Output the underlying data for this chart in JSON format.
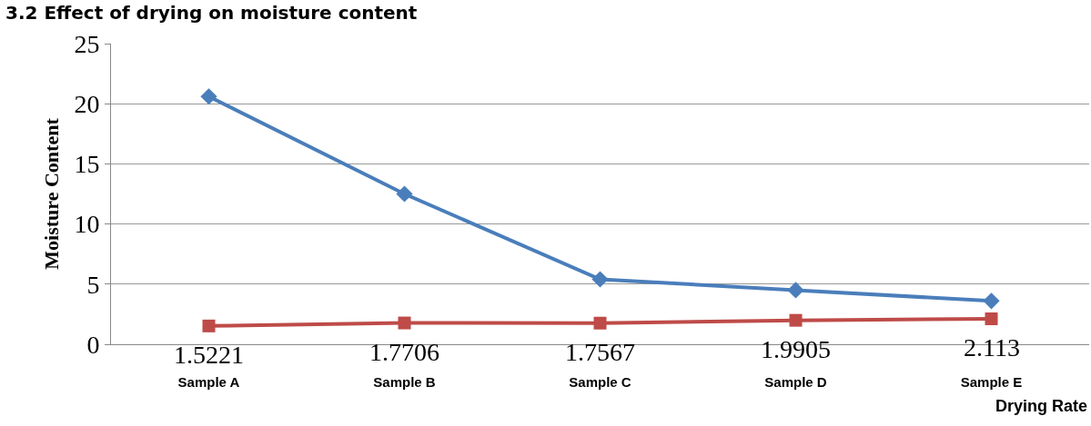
{
  "chart_data": {
    "type": "line",
    "title": "3.2 Effect of drying on moisture content",
    "xlabel": "Drying Rate",
    "ylabel": "Moisture Content",
    "categories": [
      "Sample A",
      "Sample B",
      "Sample C",
      "Sample D",
      "Sample E"
    ],
    "series": [
      {
        "color": "#4a7ebb",
        "marker": "diamond",
        "values": [
          20.6,
          12.5,
          5.4,
          4.5,
          3.6
        ]
      },
      {
        "color": "#be4b48",
        "marker": "square",
        "values": [
          1.5221,
          1.7706,
          1.7567,
          1.9905,
          2.113
        ],
        "value_labels": [
          "1.5221",
          "1.7706",
          "1.7567",
          "1.9905",
          "2.113"
        ]
      }
    ],
    "ylim": [
      0,
      25
    ],
    "yticks": [
      0,
      5,
      10,
      15,
      20,
      25
    ],
    "grid": "y",
    "line_style": "solid"
  }
}
